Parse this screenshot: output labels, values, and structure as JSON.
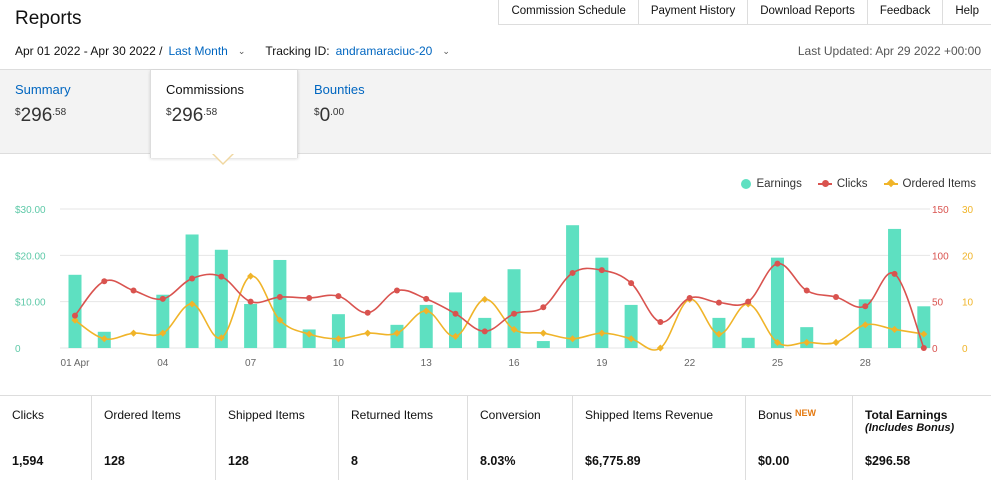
{
  "header": {
    "title": "Reports"
  },
  "topnav": [
    "Commission Schedule",
    "Payment History",
    "Download Reports",
    "Feedback",
    "Help"
  ],
  "datebar": {
    "range": "Apr 01 2022 - Apr 30 2022 /",
    "preset": "Last Month",
    "tracking_label": "Tracking ID:",
    "tracking_id": "andramaraciuc-20",
    "last_updated": "Last Updated: Apr 29 2022 +00:00"
  },
  "tabs": {
    "summary": {
      "label": "Summary",
      "dollar": "$",
      "whole": "296",
      "cents": ".58"
    },
    "commissions": {
      "label": "Commissions",
      "dollar": "$",
      "whole": "296",
      "cents": ".58"
    },
    "bounties": {
      "label": "Bounties",
      "dollar": "$",
      "whole": "0",
      "cents": ".00"
    }
  },
  "legend": {
    "earnings": "Earnings",
    "clicks": "Clicks",
    "ordered": "Ordered Items"
  },
  "colors": {
    "earnings": "#5ee0c1",
    "clicks": "#d9534f",
    "ordered": "#f0b429",
    "link": "#0066c0"
  },
  "chart_data": {
    "type": "bar",
    "categories": [
      "01 Apr",
      "02",
      "03",
      "04",
      "05",
      "06",
      "07",
      "08",
      "09",
      "10",
      "11",
      "12",
      "13",
      "14",
      "15",
      "16",
      "17",
      "18",
      "19",
      "20",
      "21",
      "22",
      "23",
      "24",
      "25",
      "26",
      "27",
      "28",
      "29",
      "30"
    ],
    "x_tick_labels": [
      "01 Apr",
      "04",
      "07",
      "10",
      "13",
      "16",
      "19",
      "22",
      "25",
      "28"
    ],
    "y_left_ticks": [
      "$30.00",
      "$20.00",
      "$10.00",
      "0"
    ],
    "y_clicks_ticks": [
      "150",
      "100",
      "50",
      "0"
    ],
    "y_ordered_ticks": [
      "30",
      "20",
      "10",
      "0"
    ],
    "ylim_earnings": [
      0,
      30
    ],
    "ylim_clicks": [
      0,
      150
    ],
    "ylim_ordered": [
      0,
      30
    ],
    "series": [
      {
        "name": "Earnings",
        "type": "bar",
        "axis": "earnings",
        "values": [
          15.8,
          3.5,
          0,
          11.5,
          24.5,
          21.2,
          9.5,
          19,
          4,
          7.3,
          0,
          5,
          9.3,
          12,
          6.5,
          17,
          1.5,
          26.5,
          19.5,
          9.3,
          0,
          0,
          6.5,
          2.2,
          19.5,
          4.5,
          0,
          10.5,
          25.7,
          9
        ]
      },
      {
        "name": "Clicks",
        "type": "line",
        "axis": "clicks",
        "values": [
          35,
          72,
          62,
          53,
          75,
          77,
          50,
          55,
          54,
          56,
          38,
          62,
          53,
          37,
          18,
          37,
          44,
          81,
          84,
          70,
          28,
          54,
          49,
          50,
          91,
          62,
          55,
          45,
          80,
          0
        ]
      },
      {
        "name": "Ordered Items",
        "type": "line",
        "axis": "ordered",
        "values": [
          6,
          2,
          3.2,
          3.2,
          9.5,
          2.2,
          15.5,
          6,
          3,
          2,
          3.2,
          3.2,
          8,
          2.5,
          10.5,
          4,
          3.2,
          2,
          3.2,
          2,
          0,
          10.5,
          3,
          9.5,
          1.2,
          1.2,
          1.2,
          5,
          4,
          3
        ]
      }
    ]
  },
  "stats": [
    {
      "label": "Clicks",
      "value": "1,594"
    },
    {
      "label": "Ordered Items",
      "value": "128"
    },
    {
      "label": "Shipped Items",
      "value": "128"
    },
    {
      "label": "Returned Items",
      "value": "8"
    },
    {
      "label": "Conversion",
      "value": "8.03%"
    },
    {
      "label": "Shipped Items Revenue",
      "value": "$6,775.89"
    },
    {
      "label": "Bonus",
      "badge": "NEW",
      "value": "$0.00"
    },
    {
      "label": "Total Earnings",
      "sub": "(Includes Bonus)",
      "value": "$296.58"
    }
  ]
}
